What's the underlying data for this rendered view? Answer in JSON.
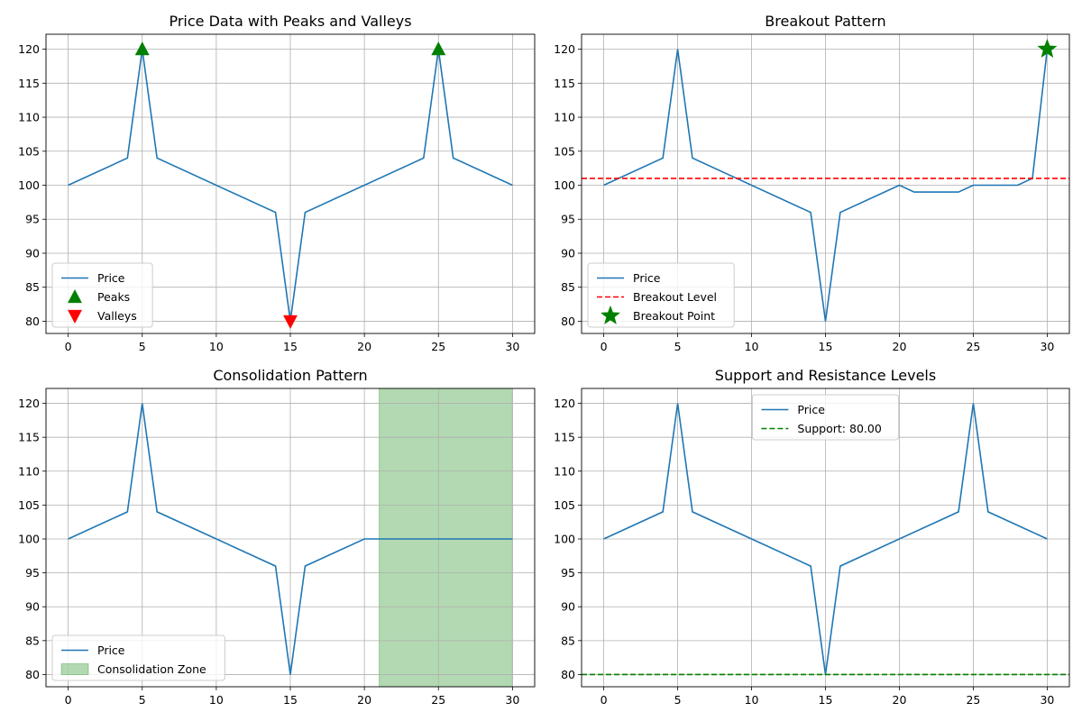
{
  "chart_data": [
    {
      "type": "line",
      "title": "Price Data with Peaks and Valleys",
      "xlabel": "",
      "ylabel": "",
      "xlim": [
        -1.5,
        31.5
      ],
      "ylim": [
        78.2,
        122.2
      ],
      "xticks": [
        0,
        5,
        10,
        15,
        20,
        25,
        30
      ],
      "yticks": [
        80,
        85,
        90,
        95,
        100,
        105,
        110,
        115,
        120
      ],
      "grid": true,
      "legend_position": "lower-left",
      "series": [
        {
          "name": "Price",
          "kind": "line",
          "color": "#1f77b4",
          "x": [
            0,
            4,
            5,
            6,
            14,
            15,
            16,
            24,
            25,
            26,
            30
          ],
          "y": [
            100,
            104,
            120,
            104,
            96,
            80,
            96,
            104,
            120,
            104,
            100
          ]
        },
        {
          "name": "Peaks",
          "kind": "marker",
          "marker": "triangle-up",
          "color": "#008000",
          "x": [
            5,
            25
          ],
          "y": [
            120,
            120
          ]
        },
        {
          "name": "Valleys",
          "kind": "marker",
          "marker": "triangle-down",
          "color": "#ff0000",
          "x": [
            15
          ],
          "y": [
            80
          ]
        }
      ]
    },
    {
      "type": "line",
      "title": "Breakout Pattern",
      "xlabel": "",
      "ylabel": "",
      "xlim": [
        -1.5,
        31.5
      ],
      "ylim": [
        78.2,
        122.2
      ],
      "xticks": [
        0,
        5,
        10,
        15,
        20,
        25,
        30
      ],
      "yticks": [
        80,
        85,
        90,
        95,
        100,
        105,
        110,
        115,
        120
      ],
      "grid": true,
      "legend_position": "lower-left",
      "series": [
        {
          "name": "Price",
          "kind": "line",
          "color": "#1f77b4",
          "x": [
            0,
            4,
            5,
            6,
            14,
            15,
            16,
            20,
            21,
            24,
            25,
            28,
            29,
            30
          ],
          "y": [
            100,
            104,
            120,
            104,
            96,
            80,
            96,
            100,
            99,
            99,
            100,
            100,
            101,
            120
          ]
        },
        {
          "name": "Breakout Level",
          "kind": "hline",
          "color": "#ff0000",
          "y": 101
        },
        {
          "name": "Breakout Point",
          "kind": "marker",
          "marker": "star",
          "color": "#008000",
          "x": [
            30
          ],
          "y": [
            120
          ]
        }
      ]
    },
    {
      "type": "line",
      "title": "Consolidation Pattern",
      "xlabel": "",
      "ylabel": "",
      "xlim": [
        -1.5,
        31.5
      ],
      "ylim": [
        78.2,
        122.2
      ],
      "xticks": [
        0,
        5,
        10,
        15,
        20,
        25,
        30
      ],
      "yticks": [
        80,
        85,
        90,
        95,
        100,
        105,
        110,
        115,
        120
      ],
      "grid": true,
      "legend_position": "lower-left",
      "series": [
        {
          "name": "Price",
          "kind": "line",
          "color": "#1f77b4",
          "x": [
            0,
            4,
            5,
            6,
            14,
            15,
            16,
            20,
            30
          ],
          "y": [
            100,
            104,
            120,
            104,
            96,
            80,
            96,
            100,
            100
          ]
        },
        {
          "name": "Consolidation Zone",
          "kind": "span",
          "color": "#008000",
          "alpha": 0.3,
          "x_start": 21,
          "x_end": 30
        }
      ]
    },
    {
      "type": "line",
      "title": "Support and Resistance Levels",
      "xlabel": "",
      "ylabel": "",
      "xlim": [
        -1.5,
        31.5
      ],
      "ylim": [
        78.2,
        122.2
      ],
      "xticks": [
        0,
        5,
        10,
        15,
        20,
        25,
        30
      ],
      "yticks": [
        80,
        85,
        90,
        95,
        100,
        105,
        110,
        115,
        120
      ],
      "grid": true,
      "legend_position": "upper-center",
      "series": [
        {
          "name": "Price",
          "kind": "line",
          "color": "#1f77b4",
          "x": [
            0,
            4,
            5,
            6,
            14,
            15,
            16,
            24,
            25,
            26,
            30
          ],
          "y": [
            100,
            104,
            120,
            104,
            96,
            80,
            96,
            104,
            120,
            104,
            100
          ]
        },
        {
          "name": "Support: 80.00",
          "kind": "hline",
          "color": "#008000",
          "y": 80
        }
      ]
    }
  ]
}
